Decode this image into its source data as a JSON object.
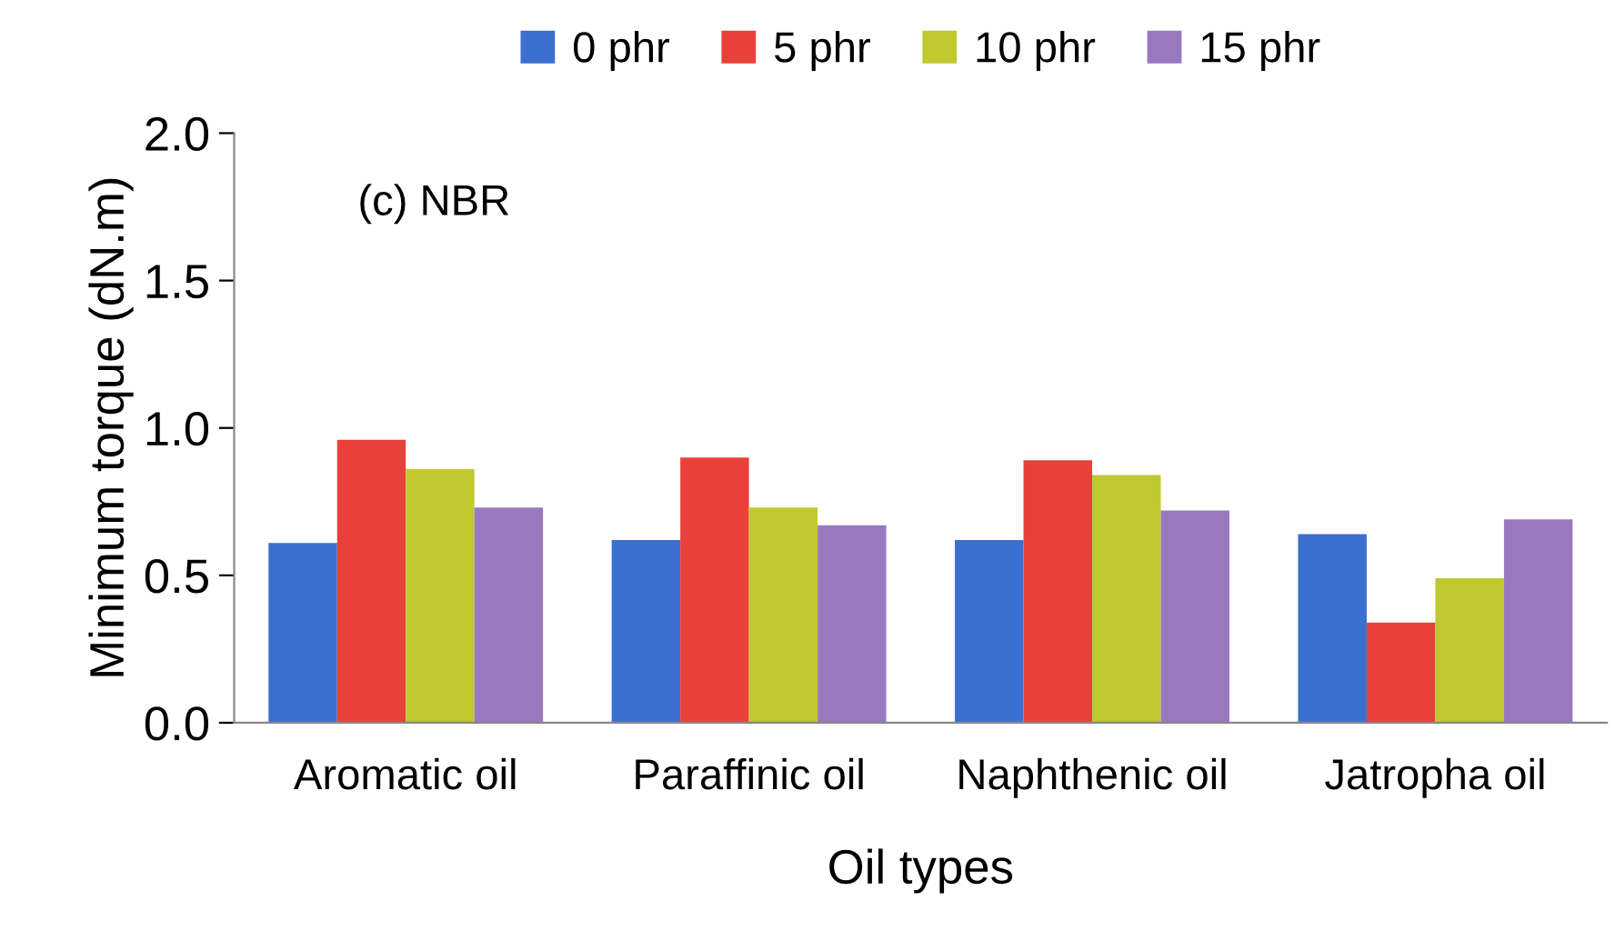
{
  "chart_data": {
    "type": "bar",
    "xlabel": "Oil types",
    "ylabel": "Minimum torque (dN.m)",
    "annotations": [
      "(c) NBR"
    ],
    "categories": [
      "Aromatic oil",
      "Paraffinic oil",
      "Naphthenic oil",
      "Jatropha oil"
    ],
    "series": [
      {
        "name": "0 phr",
        "color": "#3b6fd0",
        "values": [
          0.61,
          0.62,
          0.62,
          0.64
        ]
      },
      {
        "name": "5 phr",
        "color": "#e8403a",
        "values": [
          0.96,
          0.9,
          0.89,
          0.34
        ]
      },
      {
        "name": "10 phr",
        "color": "#c0c830",
        "values": [
          0.86,
          0.73,
          0.84,
          0.49
        ]
      },
      {
        "name": "15 phr",
        "color": "#9a78c0",
        "values": [
          0.73,
          0.67,
          0.72,
          0.69
        ]
      }
    ],
    "ylim": [
      0,
      2
    ],
    "yticks": [
      {
        "value": 0,
        "label": "0.0"
      },
      0.5,
      {
        "value": 1,
        "label": "1.0"
      },
      1.5,
      {
        "value": 2,
        "label": "2.0"
      }
    ],
    "grid": false,
    "legend": "top"
  }
}
